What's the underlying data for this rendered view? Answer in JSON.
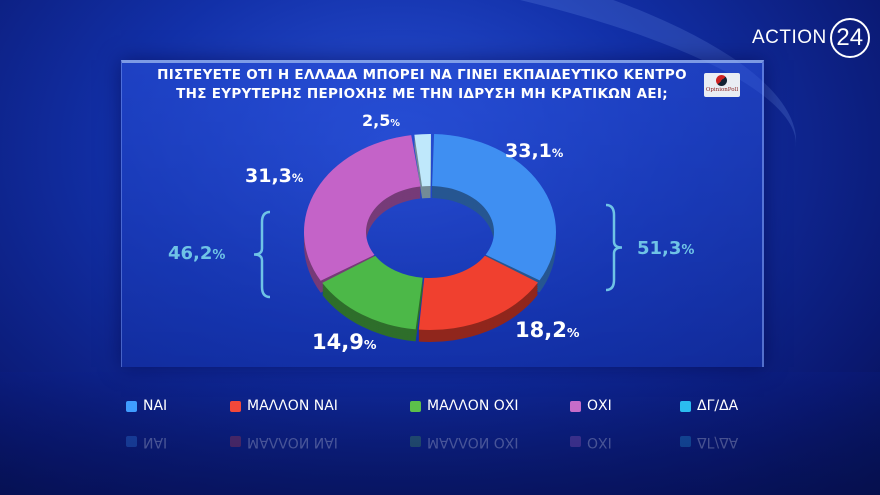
{
  "brand": {
    "logo_text": "ACTION",
    "logo_number": "24",
    "pollster_logo": "OpinionPoll"
  },
  "chart_data": {
    "type": "pie",
    "donut": true,
    "title": "ΠΙΣΤΕΥΕΤΕ ΟΤΙ Η ΕΛΛΑΔΑ ΜΠΟΡΕΙ ΝΑ ΓΙΝΕΙ ΕΚΠΑΙΔΕΥΤΙΚΟ ΚΕΝΤΡΟ ΤΗΣ ΕΥΡΥΤΕΡΗΣ ΠΕΡΙΟΧΗΣ ΜΕ ΤΗΝ ΙΔΡΥΣΗ ΜΗ ΚΡΑΤΙΚΩΝ ΑΕΙ;",
    "title_line1": "ΠΙΣΤΕΥΕΤΕ ΟΤΙ Η ΕΛΛΑΔΑ ΜΠΟΡΕΙ ΝΑ ΓΙΝΕΙ ΕΚΠΑΙΔΕΥΤΙΚΟ ΚΕΝΤΡΟ",
    "title_line2": "ΤΗΣ ΕΥΡΥΤΕΡΗΣ ΠΕΡΙΟΧΗΣ ΜΕ ΤΗΝ ΙΔΡΥΣΗ ΜΗ ΚΡΑΤΙΚΩΝ ΑΕΙ;",
    "legend_placement": "bottom",
    "slices": [
      {
        "name": "ΝΑΙ",
        "value": 33.1,
        "label": "33,1",
        "color": "#3f8ff2"
      },
      {
        "name": "ΜΑΛΛΟΝ ΝΑΙ",
        "value": 18.2,
        "label": "18,2",
        "color": "#f0402f"
      },
      {
        "name": "ΜΑΛΛΟΝ ΟΧΙ",
        "value": 14.9,
        "label": "14,9",
        "color": "#4cb848"
      },
      {
        "name": "ΟΧΙ",
        "value": 31.3,
        "label": "31,3",
        "color": "#c463c8"
      },
      {
        "name": "ΔΓ/ΔΑ",
        "value": 2.5,
        "label": "2,5",
        "color": "#bfe8fb"
      }
    ],
    "legend_colors": [
      "#3f9cff",
      "#f2483a",
      "#5cbf4a",
      "#c66cc9",
      "#2bbcf0"
    ],
    "groups": [
      {
        "label": "51,3",
        "value": 51.3,
        "members": [
          "ΝΑΙ",
          "ΜΑΛΛΟΝ ΝΑΙ"
        ]
      },
      {
        "label": "46,2",
        "value": 46.2,
        "members": [
          "ΜΑΛΛΟΝ ΟΧΙ",
          "ΟΧΙ"
        ]
      }
    ],
    "percent_sign": "%"
  }
}
